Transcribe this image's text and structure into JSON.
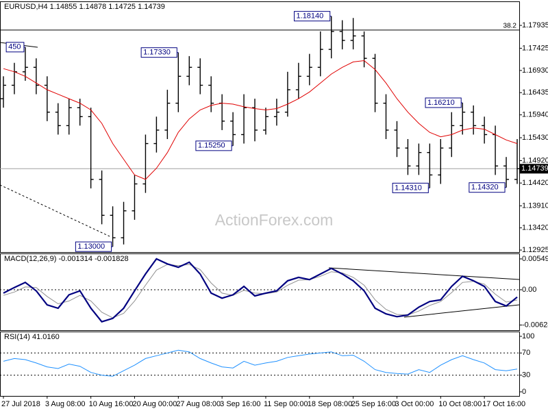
{
  "chart_data": [
    {
      "type": "ohlc",
      "title": "EURUSD,H4  1.14855 1.14878 1.14725 1.14739",
      "watermark": "ActionForex.com",
      "categories": [
        "27 Jul 2018",
        null,
        null,
        null,
        "3 Aug 08:00",
        null,
        null,
        null,
        "10 Aug 16:00",
        null,
        null,
        null,
        "20 Aug 00:00",
        null,
        null,
        null,
        "27 Aug 08:00",
        null,
        null,
        null,
        "3 Sep 16:00",
        null,
        null,
        null,
        "11 Sep 00:00",
        null,
        null,
        null,
        "18 Sep 08:00",
        null,
        null,
        null,
        "25 Sep 16:00",
        null,
        null,
        null,
        "3 Oct 00:00",
        null,
        null,
        null,
        "10 Oct 08:00",
        null,
        null,
        null,
        "17 Oct 16:00",
        null,
        null,
        null
      ],
      "open": [
        1.163,
        1.166,
        1.169,
        1.17,
        1.166,
        1.16,
        1.157,
        1.161,
        1.159,
        1.145,
        1.137,
        1.132,
        1.138,
        1.144,
        1.153,
        1.156,
        1.162,
        1.168,
        1.17,
        1.166,
        1.162,
        1.158,
        1.155,
        1.161,
        1.156,
        1.159,
        1.16,
        1.165,
        1.168,
        1.17,
        1.174,
        1.178,
        1.176,
        1.177,
        1.172,
        1.162,
        1.156,
        1.152,
        1.148,
        1.151,
        1.146,
        1.152,
        1.157,
        1.16,
        1.157,
        1.155,
        1.148,
        1.145
      ],
      "high": [
        1.168,
        1.171,
        1.1745,
        1.172,
        1.168,
        1.162,
        1.163,
        1.163,
        1.161,
        1.147,
        1.139,
        1.14,
        1.146,
        1.155,
        1.159,
        1.165,
        1.1733,
        1.1725,
        1.172,
        1.168,
        1.164,
        1.16,
        1.164,
        1.163,
        1.161,
        1.163,
        1.169,
        1.171,
        1.173,
        1.178,
        1.1814,
        1.1805,
        1.181,
        1.178,
        1.173,
        1.164,
        1.158,
        1.154,
        1.153,
        1.153,
        1.154,
        1.16,
        1.1621,
        1.1615,
        1.159,
        1.157,
        1.15,
        1.154
      ],
      "low": [
        1.161,
        1.164,
        1.167,
        1.164,
        1.158,
        1.155,
        1.155,
        1.157,
        1.143,
        1.135,
        1.13,
        1.1305,
        1.136,
        1.142,
        1.151,
        1.154,
        1.16,
        1.166,
        1.164,
        1.16,
        1.156,
        1.1525,
        1.153,
        1.1535,
        1.155,
        1.157,
        1.159,
        1.163,
        1.166,
        1.168,
        1.172,
        1.174,
        1.174,
        1.17,
        1.16,
        1.154,
        1.15,
        1.146,
        1.146,
        1.1431,
        1.144,
        1.15,
        1.155,
        1.155,
        1.153,
        1.146,
        1.1432,
        1.144
      ],
      "close": [
        1.166,
        1.169,
        1.17,
        1.166,
        1.16,
        1.157,
        1.161,
        1.159,
        1.145,
        1.137,
        1.132,
        1.138,
        1.144,
        1.153,
        1.156,
        1.162,
        1.168,
        1.17,
        1.166,
        1.162,
        1.158,
        1.155,
        1.161,
        1.156,
        1.159,
        1.16,
        1.165,
        1.168,
        1.17,
        1.174,
        1.178,
        1.176,
        1.177,
        1.172,
        1.162,
        1.156,
        1.152,
        1.148,
        1.151,
        1.146,
        1.152,
        1.157,
        1.16,
        1.157,
        1.155,
        1.148,
        1.145,
        1.14739
      ],
      "color": "#000000",
      "ma": {
        "color": "#e00000",
        "values": [
          1.1697,
          1.169,
          1.168,
          1.1665,
          1.165,
          1.164,
          1.163,
          1.162,
          1.1605,
          1.1575,
          1.153,
          1.1495,
          1.146,
          1.145,
          1.1475,
          1.151,
          1.1555,
          1.1585,
          1.1605,
          1.1615,
          1.162,
          1.1618,
          1.1612,
          1.1608,
          1.1605,
          1.1608,
          1.1618,
          1.163,
          1.1645,
          1.1665,
          1.1685,
          1.17,
          1.1712,
          1.1715,
          1.1695,
          1.1665,
          1.163,
          1.16,
          1.1575,
          1.1555,
          1.1545,
          1.155,
          1.156,
          1.1565,
          1.1562,
          1.155,
          1.1538,
          1.153
        ]
      },
      "hlines": [
        {
          "name": "38.2",
          "value": 1.1783,
          "color": "#000000"
        }
      ],
      "annotations": [
        {
          "value": 1.1745,
          "label": "450"
        },
        {
          "value": 1.1733,
          "label": "1.17330"
        },
        {
          "value": 1.13,
          "label": "1.13000"
        },
        {
          "value": 1.1525,
          "label": "1.15250"
        },
        {
          "value": 1.1814,
          "label": "1.18140"
        },
        {
          "value": 1.1431,
          "label": "1.14310"
        },
        {
          "value": 1.1621,
          "label": "1.16210"
        },
        {
          "value": 1.1432,
          "label": "1.14320"
        }
      ],
      "ylim": [
        1.1288,
        1.1844
      ],
      "yticks": [
        1.17935,
        1.17425,
        {
          "value": 1.1693,
          "label": "1.16930"
        },
        1.16435,
        {
          "value": 1.1594,
          "label": "1.15940"
        },
        {
          "value": 1.1543,
          "label": "1.15430"
        },
        {
          "value": 1.1492,
          "label": "1.14920"
        },
        {
          "value": 1.1442,
          "label": "1.14420"
        },
        {
          "value": 1.1391,
          "label": "1.13910"
        },
        {
          "value": 1.1342,
          "label": "1.13420"
        },
        1.12925
      ]
    },
    {
      "type": "macd",
      "title": "MACD(12,26,9) -0.001314 -0.001828",
      "macd": {
        "color": "#000080",
        "values": [
          -0.0006,
          0.0004,
          0.0013,
          -0.0002,
          -0.0027,
          -0.0033,
          -0.0009,
          -0.0002,
          -0.0033,
          -0.0057,
          -0.0051,
          -0.0033,
          -0.0002,
          0.0028,
          0.0055,
          0.0046,
          0.004,
          0.0049,
          0.0028,
          -0.0006,
          -0.0015,
          -0.0009,
          0.0006,
          -0.0011,
          -0.0006,
          -0.0002,
          0.0016,
          0.0022,
          0.0018,
          0.0028,
          0.0038,
          0.0028,
          0.0016,
          -0.0002,
          -0.0033,
          -0.0043,
          -0.0048,
          -0.0045,
          -0.0031,
          -0.0021,
          -0.0018,
          0.0006,
          0.0024,
          0.0016,
          0.0006,
          -0.0021,
          -0.0029,
          -0.001314
        ]
      },
      "signal": {
        "color": "#909090",
        "values": [
          -0.001,
          -0.0004,
          0.0005,
          0.0004,
          -0.0012,
          -0.0025,
          -0.002,
          -0.001,
          -0.002,
          -0.004,
          -0.005,
          -0.0042,
          -0.002,
          0.0008,
          0.0035,
          0.0045,
          0.0043,
          0.0045,
          0.0036,
          0.0012,
          -0.0006,
          -0.001,
          -0.0001,
          -0.0006,
          -0.0007,
          -0.0004,
          0.0008,
          0.0017,
          0.0018,
          0.0024,
          0.0032,
          0.003,
          0.0022,
          0.0008,
          -0.0018,
          -0.0035,
          -0.0044,
          -0.0045,
          -0.0038,
          -0.0028,
          -0.0021,
          -0.0005,
          0.0013,
          0.0015,
          0.001,
          -0.0008,
          -0.0022,
          -0.001828
        ]
      },
      "zero_line": true,
      "ylim": [
        -0.0072,
        0.00634
      ],
      "yticks": [
        0.005493,
        {
          "value": 0,
          "label": "0.00"
        },
        -0.006282
      ]
    },
    {
      "type": "rsi",
      "title": "RSI(14) 41.0160",
      "color": "#1e90ff",
      "values": [
        55,
        60,
        58,
        52,
        45,
        42,
        50,
        46,
        35,
        30,
        28,
        38,
        48,
        60,
        65,
        70,
        75,
        72,
        60,
        52,
        45,
        43,
        55,
        48,
        52,
        55,
        62,
        65,
        68,
        70,
        72,
        65,
        66,
        55,
        40,
        35,
        33,
        32,
        40,
        35,
        48,
        58,
        65,
        58,
        52,
        40,
        38,
        41.016
      ],
      "levels": [
        70,
        30
      ],
      "ylim": [
        -7.4,
        107.4
      ],
      "yticks": [
        100,
        70,
        30,
        0
      ]
    }
  ]
}
